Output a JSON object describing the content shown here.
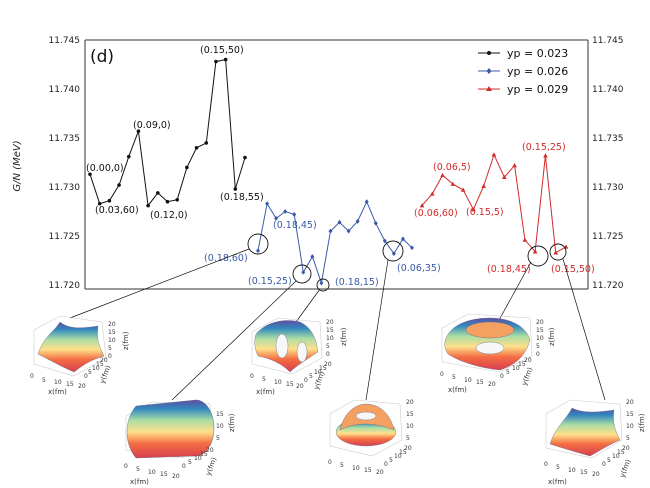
{
  "chart_data": {
    "type": "line",
    "panel_label": "(d)",
    "ylabel": "G/N (MeV)",
    "ylim": [
      11.72,
      11.745
    ],
    "yticks": [
      "11.720",
      "11.725",
      "11.730",
      "11.735",
      "11.740",
      "11.745"
    ],
    "series": [
      {
        "name": "y_p = 0.023",
        "legend_label": "yp = 0.023",
        "color": "#111111",
        "marker": "circle",
        "values": [
          11.7313,
          11.7283,
          11.7286,
          11.7302,
          11.7331,
          11.7357,
          11.7281,
          11.7294,
          11.7285,
          11.7287,
          11.732,
          11.734,
          11.7345,
          11.7428,
          11.743,
          11.7298,
          11.733
        ]
      },
      {
        "name": "y_p = 0.026",
        "legend_label": "yp = 0.026",
        "color": "#3a5aa8",
        "marker": "diamond",
        "values": [
          11.7235,
          11.7283,
          11.7268,
          11.7275,
          11.7272,
          11.7213,
          11.7229,
          11.7202,
          11.7255,
          11.7264,
          11.7255,
          11.7265,
          11.7285,
          11.7263,
          11.7245,
          11.7232,
          11.7247,
          11.7238
        ]
      },
      {
        "name": "y_p = 0.029",
        "legend_label": "yp = 0.029",
        "color": "#d42a2a",
        "marker": "triangle",
        "values": [
          11.7281,
          11.7293,
          11.7312,
          11.7303,
          11.7297,
          11.7277,
          11.7301,
          11.7333,
          11.731,
          11.7322,
          11.7246,
          11.7234,
          11.7332,
          11.7233,
          11.7239
        ]
      }
    ],
    "annotations": [
      {
        "text": "(0.00,0)",
        "series": "yp = 0.023"
      },
      {
        "text": "(0.03,60)",
        "series": "yp = 0.023"
      },
      {
        "text": "(0.09,0)",
        "series": "yp = 0.023"
      },
      {
        "text": "(0.12,0)",
        "series": "yp = 0.023"
      },
      {
        "text": "(0.15,50)",
        "series": "yp = 0.023"
      },
      {
        "text": "(0.18,55)",
        "series": "yp = 0.023"
      },
      {
        "text": "(0.18,60)",
        "series": "yp = 0.026"
      },
      {
        "text": "(0.18,45)",
        "series": "yp = 0.026"
      },
      {
        "text": "(0.15,25)",
        "series": "yp = 0.026"
      },
      {
        "text": "(0.18,15)",
        "series": "yp = 0.026"
      },
      {
        "text": "(0.06,35)",
        "series": "yp = 0.026"
      },
      {
        "text": "(0.06,60)",
        "series": "yp = 0.029"
      },
      {
        "text": "(0.06,5)",
        "series": "yp = 0.029"
      },
      {
        "text": "(0.15,5)",
        "series": "yp = 0.029"
      },
      {
        "text": "(0.15,25)",
        "series": "yp = 0.029"
      },
      {
        "text": "(0.18,45)",
        "series": "yp = 0.029"
      },
      {
        "text": "(0.15,50)",
        "series": "yp = 0.029"
      }
    ],
    "insets": [
      {
        "id": "inset-1",
        "axes": {
          "x": "x(fm)",
          "y": "y(fm)",
          "z": "z(fm)"
        },
        "xticks": [
          "0",
          "5",
          "10",
          "15",
          "20"
        ],
        "yticks": [
          "0",
          "5",
          "10",
          "15",
          "20"
        ],
        "zticks": [
          "0",
          "5",
          "10",
          "15",
          "20"
        ]
      },
      {
        "id": "inset-2",
        "axes": {
          "x": "x(fm)",
          "y": "y(fm)",
          "z": "z(fm)"
        },
        "xticks": [
          "0",
          "5",
          "10",
          "15",
          "20"
        ],
        "yticks": [
          "0",
          "5",
          "10",
          "15",
          "20"
        ],
        "zticks": [
          "5",
          "10",
          "15"
        ]
      },
      {
        "id": "inset-3",
        "axes": {
          "x": "x(fm)",
          "y": "y(fm)",
          "z": "z(fm)"
        },
        "xticks": [
          "0",
          "5",
          "10",
          "15",
          "20"
        ],
        "yticks": [
          "0",
          "5",
          "10",
          "15",
          "20"
        ],
        "zticks": [
          "0",
          "5",
          "10",
          "15",
          "20"
        ]
      },
      {
        "id": "inset-4",
        "axes": {
          "x": "x(fm)",
          "y": "y(fm)",
          "z": "z(fm)"
        },
        "xticks": [
          "0",
          "5",
          "10",
          "15",
          "20"
        ],
        "yticks": [
          "0",
          "5",
          "10",
          "15",
          "20"
        ],
        "zticks": [
          "5",
          "10",
          "15",
          "20"
        ]
      },
      {
        "id": "inset-5",
        "axes": {
          "x": "x(fm)",
          "y": "y(fm)",
          "z": "z(fm)"
        },
        "xticks": [
          "0",
          "5",
          "10",
          "15",
          "20"
        ],
        "yticks": [
          "0",
          "5",
          "10",
          "15",
          "20"
        ],
        "zticks": [
          "0",
          "5",
          "10",
          "15",
          "20"
        ]
      },
      {
        "id": "inset-6",
        "axes": {
          "x": "x(fm)",
          "y": "y(fm)",
          "z": "z(fm)"
        },
        "xticks": [
          "0",
          "5",
          "10",
          "15",
          "20"
        ],
        "yticks": [
          "0",
          "5",
          "10",
          "15",
          "20"
        ],
        "zticks": [
          "5",
          "10",
          "15",
          "20"
        ]
      }
    ]
  }
}
